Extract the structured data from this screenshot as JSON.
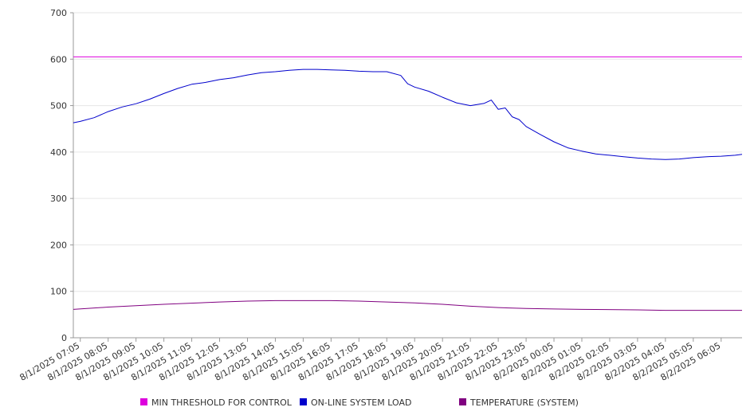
{
  "chart_data": {
    "type": "line",
    "ylim": [
      0,
      700
    ],
    "y_ticks": [
      0,
      100,
      200,
      300,
      400,
      500,
      600,
      700
    ],
    "x_tick_labels": [
      "8/1/2025 07:05",
      "8/1/2025 08:05",
      "8/1/2025 09:05",
      "8/1/2025 10:05",
      "8/1/2025 11:05",
      "8/1/2025 12:05",
      "8/1/2025 13:05",
      "8/1/2025 14:05",
      "8/1/2025 15:05",
      "8/1/2025 16:05",
      "8/1/2025 17:05",
      "8/1/2025 18:05",
      "8/1/2025 19:05",
      "8/1/2025 20:05",
      "8/1/2025 21:05",
      "8/1/2025 22:05",
      "8/1/2025 23:05",
      "8/2/2025 00:05",
      "8/2/2025 01:05",
      "8/2/2025 02:05",
      "8/2/2025 03:05",
      "8/2/2025 04:05",
      "8/2/2025 05:05",
      "8/2/2025 06:05"
    ],
    "grid": "horizontal",
    "legend_position": "bottom",
    "series": [
      {
        "name": "MIN THRESHOLD FOR CONTROL",
        "color": "#dd00dd",
        "x": [
          "8/1/2025 06:50",
          "8/2/2025 06:50"
        ],
        "values": [
          605,
          605
        ]
      },
      {
        "name": "ON-LINE SYSTEM LOAD",
        "color": "#0000cc",
        "x": [
          "8/1/2025 06:50",
          "8/1/2025 07:05",
          "8/1/2025 07:35",
          "8/1/2025 08:05",
          "8/1/2025 08:35",
          "8/1/2025 09:05",
          "8/1/2025 09:35",
          "8/1/2025 10:05",
          "8/1/2025 10:35",
          "8/1/2025 11:05",
          "8/1/2025 11:35",
          "8/1/2025 12:05",
          "8/1/2025 12:35",
          "8/1/2025 13:05",
          "8/1/2025 13:35",
          "8/1/2025 14:05",
          "8/1/2025 14:35",
          "8/1/2025 15:05",
          "8/1/2025 15:35",
          "8/1/2025 16:05",
          "8/1/2025 16:35",
          "8/1/2025 17:05",
          "8/1/2025 17:35",
          "8/1/2025 18:05",
          "8/1/2025 18:35",
          "8/1/2025 18:50",
          "8/1/2025 19:05",
          "8/1/2025 19:35",
          "8/1/2025 20:05",
          "8/1/2025 20:35",
          "8/1/2025 21:05",
          "8/1/2025 21:35",
          "8/1/2025 21:50",
          "8/1/2025 22:05",
          "8/1/2025 22:20",
          "8/1/2025 22:35",
          "8/1/2025 22:50",
          "8/1/2025 23:05",
          "8/1/2025 23:35",
          "8/2/2025 00:05",
          "8/2/2025 00:35",
          "8/2/2025 01:05",
          "8/2/2025 01:35",
          "8/2/2025 02:05",
          "8/2/2025 02:35",
          "8/2/2025 03:05",
          "8/2/2025 03:35",
          "8/2/2025 04:05",
          "8/2/2025 04:35",
          "8/2/2025 05:05",
          "8/2/2025 05:35",
          "8/2/2025 06:05",
          "8/2/2025 06:35",
          "8/2/2025 06:50"
        ],
        "values": [
          463,
          466,
          474,
          487,
          497,
          504,
          514,
          526,
          537,
          546,
          550,
          556,
          560,
          566,
          571,
          573,
          576,
          578,
          578,
          577,
          576,
          574,
          573,
          573,
          565,
          547,
          540,
          531,
          518,
          506,
          500,
          505,
          512,
          492,
          495,
          476,
          470,
          455,
          438,
          422,
          409,
          402,
          396,
          393,
          390,
          387,
          385,
          384,
          385,
          388,
          390,
          391,
          393,
          395
        ]
      },
      {
        "name": "TEMPERATURE (SYSTEM)",
        "color": "#800080",
        "x": [
          "8/1/2025 06:50",
          "8/1/2025 08:05",
          "8/1/2025 10:05",
          "8/1/2025 12:05",
          "8/1/2025 13:05",
          "8/1/2025 14:05",
          "8/1/2025 16:05",
          "8/1/2025 17:05",
          "8/1/2025 18:05",
          "8/1/2025 19:05",
          "8/1/2025 20:05",
          "8/1/2025 21:05",
          "8/1/2025 22:05",
          "8/1/2025 23:05",
          "8/2/2025 00:05",
          "8/2/2025 01:05",
          "8/2/2025 03:05",
          "8/2/2025 04:05",
          "8/2/2025 06:50"
        ],
        "values": [
          61,
          66,
          72,
          77,
          79,
          80,
          80,
          79,
          77,
          75,
          72,
          68,
          65,
          63,
          62,
          61,
          60,
          59,
          59
        ]
      }
    ]
  }
}
